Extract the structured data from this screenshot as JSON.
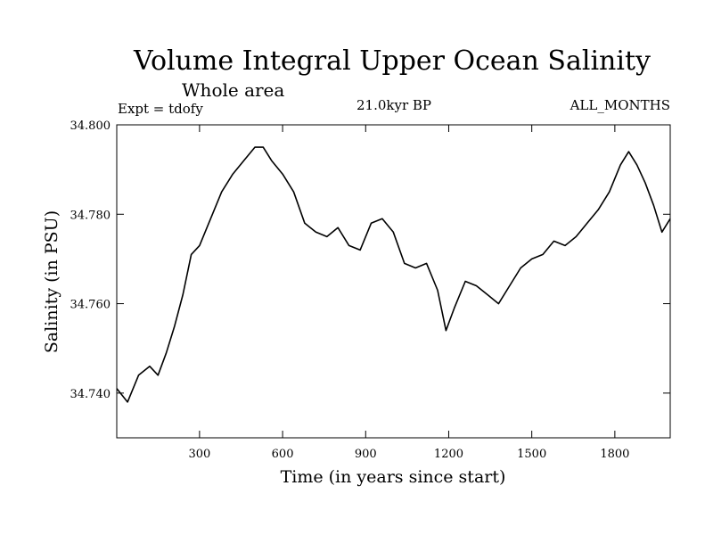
{
  "chart_data": {
    "type": "line",
    "title": "Volume Integral Upper Ocean Salinity",
    "subtitle": "Whole area",
    "annotations": {
      "left": "Expt = tdofy",
      "center": "21.0kyr BP",
      "right": "ALL_MONTHS"
    },
    "xlabel": "Time (in years since start)",
    "ylabel": "Salinity (in PSU)",
    "xlim": [
      1,
      2000
    ],
    "ylim": [
      34.73,
      34.8
    ],
    "x_ticks": [
      300,
      600,
      900,
      1200,
      1500,
      1800
    ],
    "y_ticks": [
      34.74,
      34.76,
      34.78,
      34.8
    ],
    "y_tick_labels": [
      "34.740",
      "34.760",
      "34.780",
      "34.800"
    ],
    "grid": false,
    "line_color": "#000000",
    "series": [
      {
        "x": [
          1,
          40,
          80,
          120,
          150,
          180,
          210,
          240,
          270,
          300,
          340,
          380,
          420,
          460,
          500,
          530,
          560,
          600,
          640,
          680,
          720,
          760,
          800,
          840,
          880,
          920,
          960,
          1000,
          1040,
          1080,
          1120,
          1160,
          1190,
          1220,
          1260,
          1300,
          1340,
          1380,
          1420,
          1460,
          1500,
          1540,
          1580,
          1620,
          1660,
          1700,
          1740,
          1780,
          1820,
          1850,
          1880,
          1910,
          1940,
          1970,
          2000
        ],
        "y": [
          34.741,
          34.738,
          34.744,
          34.746,
          34.744,
          34.749,
          34.755,
          34.762,
          34.771,
          34.773,
          34.779,
          34.785,
          34.789,
          34.792,
          34.795,
          34.795,
          34.792,
          34.789,
          34.785,
          34.778,
          34.776,
          34.775,
          34.777,
          34.773,
          34.772,
          34.778,
          34.779,
          34.776,
          34.769,
          34.768,
          34.769,
          34.763,
          34.754,
          34.759,
          34.765,
          34.764,
          34.762,
          34.76,
          34.764,
          34.768,
          34.77,
          34.771,
          34.774,
          34.773,
          34.775,
          34.778,
          34.781,
          34.785,
          34.791,
          34.794,
          34.791,
          34.787,
          34.782,
          34.776,
          34.779
        ]
      }
    ]
  }
}
